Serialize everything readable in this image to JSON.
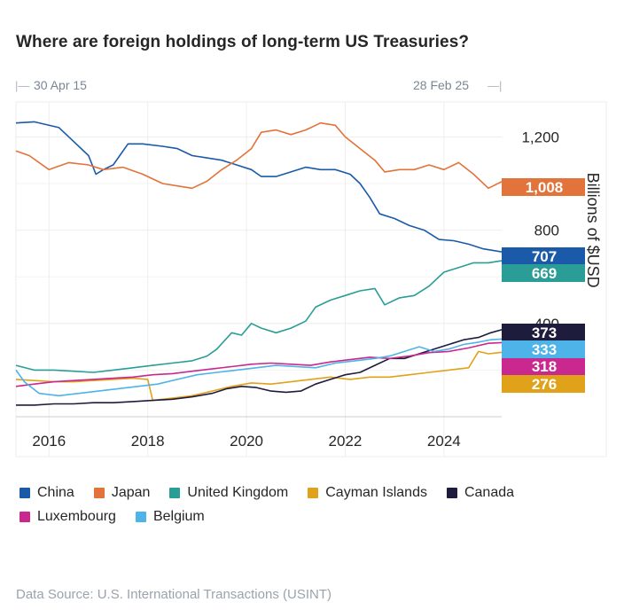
{
  "title": "Where are foreign holdings of long-term US Treasuries?",
  "range_start": "30 Apr 15",
  "range_end": "28 Feb 25",
  "source": "Data Source: U.S. International Transactions (USINT)",
  "chart_data": {
    "type": "line",
    "ylabel": "Billions of $USD",
    "xlim": [
      2015.33,
      2025.17
    ],
    "ylim": [
      0,
      1350
    ],
    "y_ticks": [
      400,
      800,
      1200
    ],
    "y_tick_labels": [
      "400",
      "800",
      "1,200"
    ],
    "x_ticks": [
      2016,
      2018,
      2020,
      2022,
      2024
    ],
    "x_tick_labels": [
      "2016",
      "2018",
      "2020",
      "2022",
      "2024"
    ],
    "legend_position": "bottom",
    "series": [
      {
        "name": "China",
        "color": "#1a5aa8",
        "end_label": "707",
        "points": [
          [
            2015.33,
            1260
          ],
          [
            2015.7,
            1265
          ],
          [
            2016.2,
            1240
          ],
          [
            2016.5,
            1180
          ],
          [
            2016.8,
            1120
          ],
          [
            2016.95,
            1040
          ],
          [
            2017.1,
            1060
          ],
          [
            2017.3,
            1080
          ],
          [
            2017.6,
            1170
          ],
          [
            2017.9,
            1170
          ],
          [
            2018.3,
            1160
          ],
          [
            2018.6,
            1150
          ],
          [
            2018.9,
            1120
          ],
          [
            2019.2,
            1110
          ],
          [
            2019.5,
            1100
          ],
          [
            2019.8,
            1080
          ],
          [
            2020.1,
            1060
          ],
          [
            2020.3,
            1030
          ],
          [
            2020.6,
            1030
          ],
          [
            2020.9,
            1050
          ],
          [
            2021.2,
            1070
          ],
          [
            2021.5,
            1060
          ],
          [
            2021.8,
            1060
          ],
          [
            2022.1,
            1040
          ],
          [
            2022.3,
            1000
          ],
          [
            2022.5,
            940
          ],
          [
            2022.7,
            870
          ],
          [
            2023.0,
            850
          ],
          [
            2023.3,
            820
          ],
          [
            2023.6,
            800
          ],
          [
            2023.9,
            760
          ],
          [
            2024.2,
            755
          ],
          [
            2024.5,
            740
          ],
          [
            2024.8,
            720
          ],
          [
            2025.17,
            707
          ]
        ]
      },
      {
        "name": "Japan",
        "color": "#e2733b",
        "end_label": "1,008",
        "points": [
          [
            2015.33,
            1140
          ],
          [
            2015.6,
            1120
          ],
          [
            2016.0,
            1060
          ],
          [
            2016.4,
            1090
          ],
          [
            2016.8,
            1080
          ],
          [
            2017.1,
            1060
          ],
          [
            2017.5,
            1070
          ],
          [
            2017.9,
            1040
          ],
          [
            2018.3,
            1000
          ],
          [
            2018.6,
            990
          ],
          [
            2018.9,
            980
          ],
          [
            2019.2,
            1010
          ],
          [
            2019.5,
            1060
          ],
          [
            2019.8,
            1100
          ],
          [
            2020.1,
            1150
          ],
          [
            2020.3,
            1220
          ],
          [
            2020.6,
            1230
          ],
          [
            2020.9,
            1210
          ],
          [
            2021.2,
            1230
          ],
          [
            2021.5,
            1260
          ],
          [
            2021.8,
            1250
          ],
          [
            2022.0,
            1200
          ],
          [
            2022.3,
            1150
          ],
          [
            2022.6,
            1100
          ],
          [
            2022.8,
            1050
          ],
          [
            2023.1,
            1060
          ],
          [
            2023.4,
            1060
          ],
          [
            2023.7,
            1080
          ],
          [
            2024.0,
            1060
          ],
          [
            2024.3,
            1090
          ],
          [
            2024.6,
            1040
          ],
          [
            2024.9,
            980
          ],
          [
            2025.17,
            1008
          ]
        ]
      },
      {
        "name": "United Kingdom",
        "color": "#2a9d96",
        "end_label": "669",
        "points": [
          [
            2015.33,
            220
          ],
          [
            2015.7,
            200
          ],
          [
            2016.1,
            200
          ],
          [
            2016.5,
            195
          ],
          [
            2016.9,
            190
          ],
          [
            2017.3,
            200
          ],
          [
            2017.7,
            210
          ],
          [
            2018.1,
            220
          ],
          [
            2018.5,
            230
          ],
          [
            2018.9,
            240
          ],
          [
            2019.2,
            260
          ],
          [
            2019.4,
            290
          ],
          [
            2019.7,
            360
          ],
          [
            2019.9,
            350
          ],
          [
            2020.1,
            400
          ],
          [
            2020.3,
            380
          ],
          [
            2020.6,
            360
          ],
          [
            2020.9,
            380
          ],
          [
            2021.2,
            410
          ],
          [
            2021.4,
            470
          ],
          [
            2021.7,
            500
          ],
          [
            2022.0,
            520
          ],
          [
            2022.3,
            540
          ],
          [
            2022.6,
            550
          ],
          [
            2022.8,
            480
          ],
          [
            2023.1,
            510
          ],
          [
            2023.4,
            520
          ],
          [
            2023.7,
            560
          ],
          [
            2024.0,
            620
          ],
          [
            2024.3,
            640
          ],
          [
            2024.6,
            660
          ],
          [
            2024.9,
            660
          ],
          [
            2025.17,
            669
          ]
        ]
      },
      {
        "name": "Cayman Islands",
        "color": "#e0a21b",
        "end_label": "276",
        "points": [
          [
            2015.33,
            160
          ],
          [
            2015.7,
            155
          ],
          [
            2016.1,
            150
          ],
          [
            2016.5,
            150
          ],
          [
            2016.9,
            155
          ],
          [
            2017.3,
            160
          ],
          [
            2017.7,
            165
          ],
          [
            2018.0,
            160
          ],
          [
            2018.1,
            70
          ],
          [
            2018.5,
            80
          ],
          [
            2018.9,
            90
          ],
          [
            2019.3,
            110
          ],
          [
            2019.7,
            130
          ],
          [
            2020.1,
            145
          ],
          [
            2020.5,
            140
          ],
          [
            2020.9,
            150
          ],
          [
            2021.3,
            160
          ],
          [
            2021.7,
            170
          ],
          [
            2022.1,
            160
          ],
          [
            2022.5,
            170
          ],
          [
            2022.9,
            170
          ],
          [
            2023.3,
            180
          ],
          [
            2023.7,
            190
          ],
          [
            2024.1,
            200
          ],
          [
            2024.5,
            210
          ],
          [
            2024.7,
            280
          ],
          [
            2024.9,
            270
          ],
          [
            2025.17,
            276
          ]
        ]
      },
      {
        "name": "Canada",
        "color": "#1e1c3d",
        "end_label": "373",
        "points": [
          [
            2015.33,
            50
          ],
          [
            2015.7,
            50
          ],
          [
            2016.1,
            55
          ],
          [
            2016.5,
            55
          ],
          [
            2016.9,
            60
          ],
          [
            2017.3,
            60
          ],
          [
            2017.7,
            65
          ],
          [
            2018.1,
            70
          ],
          [
            2018.5,
            75
          ],
          [
            2018.9,
            85
          ],
          [
            2019.3,
            100
          ],
          [
            2019.6,
            120
          ],
          [
            2019.9,
            130
          ],
          [
            2020.2,
            125
          ],
          [
            2020.5,
            110
          ],
          [
            2020.8,
            105
          ],
          [
            2021.1,
            110
          ],
          [
            2021.4,
            140
          ],
          [
            2021.7,
            160
          ],
          [
            2022.0,
            180
          ],
          [
            2022.3,
            190
          ],
          [
            2022.6,
            220
          ],
          [
            2022.9,
            250
          ],
          [
            2023.2,
            250
          ],
          [
            2023.5,
            270
          ],
          [
            2023.8,
            290
          ],
          [
            2024.1,
            310
          ],
          [
            2024.4,
            330
          ],
          [
            2024.7,
            340
          ],
          [
            2024.95,
            360
          ],
          [
            2025.17,
            373
          ]
        ]
      },
      {
        "name": "Luxembourg",
        "color": "#c9288f",
        "end_label": "318",
        "points": [
          [
            2015.33,
            130
          ],
          [
            2015.7,
            140
          ],
          [
            2016.1,
            150
          ],
          [
            2016.5,
            155
          ],
          [
            2016.9,
            160
          ],
          [
            2017.3,
            165
          ],
          [
            2017.7,
            170
          ],
          [
            2018.1,
            180
          ],
          [
            2018.5,
            185
          ],
          [
            2018.9,
            195
          ],
          [
            2019.3,
            205
          ],
          [
            2019.7,
            215
          ],
          [
            2020.1,
            225
          ],
          [
            2020.5,
            230
          ],
          [
            2020.9,
            225
          ],
          [
            2021.3,
            220
          ],
          [
            2021.7,
            235
          ],
          [
            2022.1,
            245
          ],
          [
            2022.5,
            255
          ],
          [
            2022.9,
            250
          ],
          [
            2023.3,
            260
          ],
          [
            2023.7,
            275
          ],
          [
            2024.1,
            280
          ],
          [
            2024.5,
            295
          ],
          [
            2024.9,
            315
          ],
          [
            2025.17,
            318
          ]
        ]
      },
      {
        "name": "Belgium",
        "color": "#4db3e8",
        "end_label": "333",
        "points": [
          [
            2015.33,
            200
          ],
          [
            2015.5,
            150
          ],
          [
            2015.8,
            100
          ],
          [
            2016.2,
            90
          ],
          [
            2016.6,
            100
          ],
          [
            2017.0,
            110
          ],
          [
            2017.4,
            120
          ],
          [
            2017.8,
            130
          ],
          [
            2018.2,
            140
          ],
          [
            2018.6,
            160
          ],
          [
            2019.0,
            180
          ],
          [
            2019.4,
            190
          ],
          [
            2019.8,
            200
          ],
          [
            2020.2,
            210
          ],
          [
            2020.6,
            220
          ],
          [
            2021.0,
            215
          ],
          [
            2021.4,
            210
          ],
          [
            2021.8,
            230
          ],
          [
            2022.2,
            240
          ],
          [
            2022.6,
            250
          ],
          [
            2022.9,
            260
          ],
          [
            2023.2,
            280
          ],
          [
            2023.5,
            300
          ],
          [
            2023.8,
            280
          ],
          [
            2024.1,
            290
          ],
          [
            2024.4,
            310
          ],
          [
            2024.7,
            320
          ],
          [
            2024.95,
            330
          ],
          [
            2025.17,
            333
          ]
        ]
      }
    ]
  }
}
